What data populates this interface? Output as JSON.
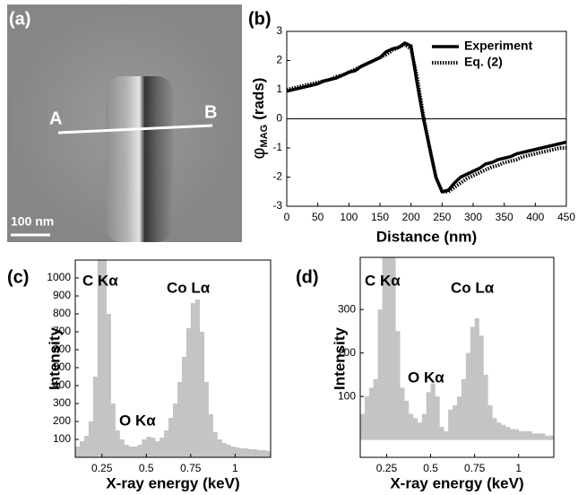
{
  "image_panel": {
    "panel_label": "(a)",
    "point_a": "A",
    "point_b": "B",
    "scale_bar": "100 nm"
  },
  "chart_data": [
    {
      "type": "line",
      "panel_label": "(b)",
      "xlabel": "Distance (nm)",
      "ylabel": "φ",
      "ylabel_sub": "MAG",
      "ylabel_unit": "(rads)",
      "xlim": [
        0,
        450
      ],
      "ylim": [
        -3,
        3
      ],
      "xticks": [
        0,
        50,
        100,
        150,
        200,
        250,
        300,
        350,
        400,
        450
      ],
      "yticks": [
        -3,
        -2,
        -1,
        0,
        1,
        2,
        3
      ],
      "reference_line": 0,
      "legend": "upper right",
      "x": [
        0,
        10,
        20,
        30,
        40,
        50,
        60,
        70,
        80,
        90,
        100,
        110,
        120,
        130,
        140,
        150,
        160,
        170,
        180,
        190,
        200,
        210,
        220,
        230,
        240,
        250,
        260,
        270,
        280,
        290,
        300,
        310,
        320,
        330,
        340,
        350,
        360,
        370,
        380,
        390,
        400,
        410,
        420,
        430,
        440,
        450
      ],
      "series": [
        {
          "name": "Experiment",
          "color": "#000000",
          "linestyle": "solid",
          "values": [
            0.95,
            1.0,
            1.05,
            1.1,
            1.15,
            1.2,
            1.3,
            1.35,
            1.4,
            1.5,
            1.6,
            1.65,
            1.8,
            1.9,
            2.0,
            2.1,
            2.3,
            2.4,
            2.45,
            2.6,
            2.5,
            1.2,
            0.0,
            -1.0,
            -2.0,
            -2.5,
            -2.45,
            -2.2,
            -2.0,
            -1.9,
            -1.8,
            -1.7,
            -1.55,
            -1.5,
            -1.4,
            -1.35,
            -1.3,
            -1.2,
            -1.15,
            -1.1,
            -1.05,
            -1.0,
            -0.95,
            -0.9,
            -0.85,
            -0.8
          ]
        },
        {
          "name": "Eq. (2)",
          "color": "#000000",
          "linestyle": "dotted",
          "values": [
            1.0,
            1.05,
            1.1,
            1.15,
            1.2,
            1.25,
            1.3,
            1.35,
            1.45,
            1.5,
            1.6,
            1.7,
            1.8,
            1.9,
            2.0,
            2.1,
            2.2,
            2.35,
            2.45,
            2.55,
            2.4,
            1.4,
            0.1,
            -1.0,
            -2.0,
            -2.5,
            -2.5,
            -2.35,
            -2.2,
            -2.05,
            -1.95,
            -1.85,
            -1.75,
            -1.65,
            -1.6,
            -1.5,
            -1.45,
            -1.4,
            -1.3,
            -1.25,
            -1.2,
            -1.15,
            -1.1,
            -1.05,
            -1.0,
            -1.0
          ]
        }
      ]
    },
    {
      "type": "histogram",
      "panel_label": "(c)",
      "xlabel": "X-ray energy (keV)",
      "ylabel": "Intensity",
      "color": "#c4c4c4",
      "xlim": [
        0.1,
        1.2
      ],
      "ylim": [
        0,
        1100
      ],
      "xticks": [
        0.25,
        0.5,
        0.75,
        1
      ],
      "yticks": [
        100,
        200,
        300,
        400,
        500,
        600,
        700,
        800,
        900,
        1000
      ],
      "annotations": [
        "C Kα",
        "Co Lα",
        "O Kα"
      ],
      "bins": [
        0.1,
        0.125,
        0.15,
        0.175,
        0.2,
        0.225,
        0.25,
        0.275,
        0.3,
        0.325,
        0.35,
        0.375,
        0.4,
        0.425,
        0.45,
        0.475,
        0.5,
        0.525,
        0.55,
        0.575,
        0.6,
        0.625,
        0.65,
        0.675,
        0.7,
        0.725,
        0.75,
        0.775,
        0.8,
        0.825,
        0.85,
        0.875,
        0.9,
        0.925,
        0.95,
        0.975,
        1.0,
        1.025,
        1.05,
        1.075,
        1.1,
        1.125,
        1.15,
        1.175,
        1.2
      ],
      "values": [
        60,
        90,
        120,
        200,
        450,
        1100,
        1100,
        800,
        300,
        150,
        100,
        70,
        60,
        60,
        70,
        100,
        115,
        110,
        90,
        110,
        150,
        220,
        300,
        420,
        560,
        720,
        860,
        880,
        700,
        420,
        240,
        140,
        100,
        80,
        70,
        60,
        55,
        50,
        50,
        45,
        45,
        40,
        40,
        35
      ]
    },
    {
      "type": "histogram",
      "panel_label": "(d)",
      "xlabel": "X-ray energy (keV)",
      "ylabel": "Intensity",
      "color": "#c4c4c4",
      "xlim": [
        0.1,
        1.2
      ],
      "ylim": [
        -40,
        420
      ],
      "xticks": [
        0.25,
        0.5,
        0.75,
        1
      ],
      "yticks": [
        100,
        200,
        300
      ],
      "annotations": [
        "C Kα",
        "Co Lα",
        "O Kα"
      ],
      "bins": [
        0.1,
        0.125,
        0.15,
        0.175,
        0.2,
        0.225,
        0.25,
        0.275,
        0.3,
        0.325,
        0.35,
        0.375,
        0.4,
        0.425,
        0.45,
        0.475,
        0.5,
        0.525,
        0.55,
        0.575,
        0.6,
        0.625,
        0.65,
        0.675,
        0.7,
        0.725,
        0.75,
        0.775,
        0.8,
        0.825,
        0.85,
        0.875,
        0.9,
        0.925,
        0.95,
        0.975,
        1.0,
        1.025,
        1.05,
        1.075,
        1.1,
        1.125,
        1.15,
        1.175,
        1.2
      ],
      "values": [
        60,
        100,
        120,
        140,
        300,
        420,
        420,
        420,
        250,
        120,
        90,
        60,
        50,
        40,
        60,
        110,
        130,
        100,
        30,
        20,
        70,
        80,
        100,
        140,
        200,
        260,
        280,
        240,
        150,
        80,
        50,
        40,
        35,
        30,
        25,
        25,
        20,
        20,
        20,
        15,
        15,
        15,
        10,
        10
      ]
    }
  ]
}
